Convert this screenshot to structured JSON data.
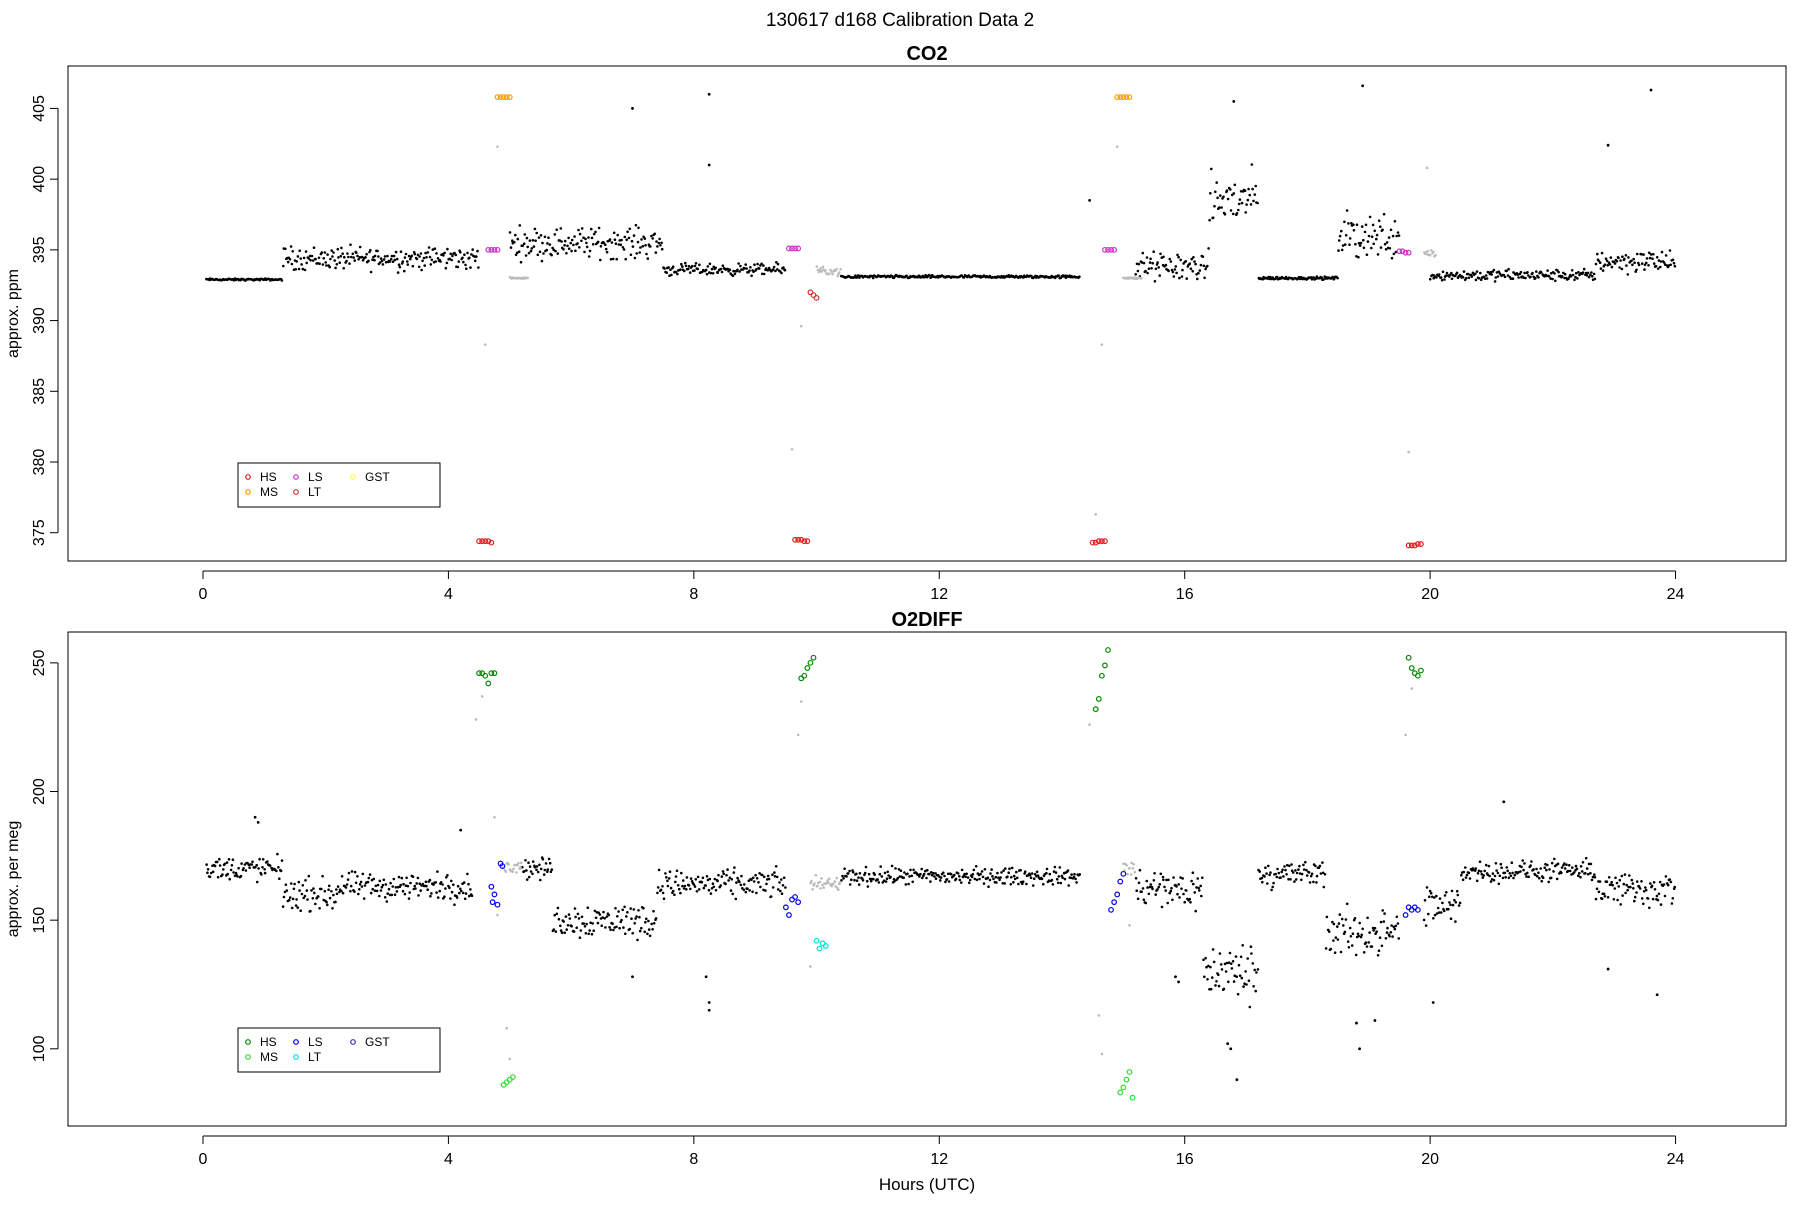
{
  "figure": {
    "title": "130617   d168   Calibration Data 2",
    "xlabel": "Hours (UTC)"
  },
  "chart_data": [
    {
      "type": "scatter",
      "title": "CO2",
      "xlabel": "",
      "ylabel": "approx. ppm",
      "xlim": [
        -2.2,
        25.8
      ],
      "ylim": [
        373,
        408
      ],
      "xticks": [
        0,
        4,
        8,
        12,
        16,
        20,
        24
      ],
      "yticks": [
        375,
        380,
        385,
        390,
        395,
        400,
        405
      ],
      "grid": false,
      "legend_position": "bottom-left",
      "legend": [
        {
          "name": "HS",
          "color": "#e41a1c"
        },
        {
          "name": "MS",
          "color": "#ff9900"
        },
        {
          "name": "LS",
          "color": "#cc33cc"
        },
        {
          "name": "LT",
          "color": "#cc3333"
        },
        {
          "name": "GST",
          "color": "#ffff33"
        }
      ],
      "clusters": [
        {
          "name": "HS",
          "color": "#e41a1c",
          "points": [
            [
              4.5,
              374.4
            ],
            [
              4.55,
              374.4
            ],
            [
              4.6,
              374.4
            ],
            [
              4.65,
              374.4
            ],
            [
              4.7,
              374.3
            ]
          ]
        },
        {
          "name": "HS",
          "color": "#e41a1c",
          "points": [
            [
              9.65,
              374.5
            ],
            [
              9.7,
              374.5
            ],
            [
              9.75,
              374.5
            ],
            [
              9.8,
              374.4
            ],
            [
              9.85,
              374.4
            ]
          ]
        },
        {
          "name": "HS",
          "color": "#e41a1c",
          "points": [
            [
              14.5,
              374.3
            ],
            [
              14.55,
              374.3
            ],
            [
              14.6,
              374.4
            ],
            [
              14.65,
              374.4
            ],
            [
              14.7,
              374.4
            ]
          ]
        },
        {
          "name": "HS",
          "color": "#e41a1c",
          "points": [
            [
              19.65,
              374.1
            ],
            [
              19.7,
              374.1
            ],
            [
              19.75,
              374.1
            ],
            [
              19.8,
              374.2
            ],
            [
              19.85,
              374.2
            ]
          ]
        },
        {
          "name": "MS",
          "color": "#ff9900",
          "points": [
            [
              4.8,
              405.8
            ],
            [
              4.85,
              405.8
            ],
            [
              4.9,
              405.8
            ],
            [
              4.95,
              405.8
            ],
            [
              5.0,
              405.8
            ]
          ]
        },
        {
          "name": "MS",
          "color": "#ff9900",
          "points": [
            [
              14.9,
              405.8
            ],
            [
              14.95,
              405.8
            ],
            [
              15.0,
              405.8
            ],
            [
              15.05,
              405.8
            ],
            [
              15.1,
              405.8
            ]
          ]
        },
        {
          "name": "LS",
          "color": "#cc33cc",
          "points": [
            [
              4.65,
              395.0
            ],
            [
              4.7,
              395.0
            ],
            [
              4.75,
              395.0
            ],
            [
              4.8,
              395.0
            ]
          ]
        },
        {
          "name": "LS",
          "color": "#cc33cc",
          "points": [
            [
              9.55,
              395.1
            ],
            [
              9.6,
              395.1
            ],
            [
              9.65,
              395.1
            ],
            [
              9.7,
              395.1
            ]
          ]
        },
        {
          "name": "LS",
          "color": "#cc33cc",
          "points": [
            [
              14.7,
              395.0
            ],
            [
              14.75,
              395.0
            ],
            [
              14.8,
              395.0
            ],
            [
              14.85,
              395.0
            ]
          ]
        },
        {
          "name": "LS",
          "color": "#cc33cc",
          "points": [
            [
              19.5,
              394.9
            ],
            [
              19.55,
              394.9
            ],
            [
              19.6,
              394.8
            ],
            [
              19.65,
              394.8
            ]
          ]
        },
        {
          "name": "LT",
          "color": "#cc3333",
          "points": [
            [
              9.9,
              392.0
            ],
            [
              9.95,
              391.8
            ],
            [
              10.0,
              391.6
            ]
          ]
        }
      ],
      "outliers_gray": [
        [
          4.6,
          388.3
        ],
        [
          4.8,
          402.3
        ],
        [
          9.6,
          380.9
        ],
        [
          9.75,
          389.6
        ],
        [
          14.55,
          376.3
        ],
        [
          14.65,
          388.3
        ],
        [
          14.9,
          402.3
        ],
        [
          19.65,
          380.7
        ],
        [
          19.95,
          400.8
        ]
      ],
      "outliers_black": [
        [
          8.25,
          406.0
        ],
        [
          8.25,
          401.0
        ],
        [
          7.0,
          405.0
        ],
        [
          16.8,
          405.5
        ],
        [
          18.9,
          406.6
        ],
        [
          23.6,
          406.3
        ],
        [
          22.9,
          402.4
        ],
        [
          14.45,
          398.5
        ]
      ],
      "segments": [
        {
          "from": 0.05,
          "to": 1.3,
          "base": 392.9,
          "noise": 0.1,
          "color": "#000000"
        },
        {
          "from": 1.3,
          "to": 4.5,
          "base": 394.4,
          "noise": 1.2,
          "color": "#000000"
        },
        {
          "from": 5.0,
          "to": 7.5,
          "base": 395.5,
          "noise": 1.6,
          "color": "#000000"
        },
        {
          "from": 7.5,
          "to": 9.5,
          "base": 393.6,
          "noise": 0.6,
          "color": "#000000"
        },
        {
          "from": 10.4,
          "to": 14.3,
          "base": 393.1,
          "noise": 0.15,
          "color": "#000000"
        },
        {
          "from": 15.2,
          "to": 16.4,
          "base": 393.8,
          "noise": 1.5,
          "color": "#000000"
        },
        {
          "from": 16.4,
          "to": 17.2,
          "base": 398.5,
          "noise": 3.0,
          "color": "#000000"
        },
        {
          "from": 17.2,
          "to": 18.5,
          "base": 393.0,
          "noise": 0.15,
          "color": "#000000"
        },
        {
          "from": 18.5,
          "to": 19.5,
          "base": 396.0,
          "noise": 2.5,
          "color": "#000000"
        },
        {
          "from": 20.0,
          "to": 22.7,
          "base": 393.2,
          "noise": 0.6,
          "color": "#000000"
        },
        {
          "from": 22.7,
          "to": 24.0,
          "base": 394.2,
          "noise": 1.2,
          "color": "#000000"
        },
        {
          "from": 10.0,
          "to": 10.4,
          "base": 393.5,
          "noise": 0.4,
          "color": "#bbbbbb"
        },
        {
          "from": 5.0,
          "to": 5.3,
          "base": 393.0,
          "noise": 0.1,
          "color": "#bbbbbb"
        },
        {
          "from": 15.0,
          "to": 15.3,
          "base": 393.0,
          "noise": 0.1,
          "color": "#bbbbbb"
        },
        {
          "from": 19.9,
          "to": 20.1,
          "base": 394.8,
          "noise": 0.4,
          "color": "#bbbbbb"
        }
      ]
    },
    {
      "type": "scatter",
      "title": "O2DIFF",
      "xlabel": "Hours (UTC)",
      "ylabel": "approx. per meg",
      "xlim": [
        -2.2,
        25.8
      ],
      "ylim": [
        70,
        262
      ],
      "xticks": [
        0,
        4,
        8,
        12,
        16,
        20,
        24
      ],
      "yticks": [
        100,
        150,
        200,
        250
      ],
      "grid": false,
      "legend_position": "bottom-left",
      "legend": [
        {
          "name": "HS",
          "color": "#008800"
        },
        {
          "name": "MS",
          "color": "#33dd33"
        },
        {
          "name": "LS",
          "color": "#0000ee"
        },
        {
          "name": "LT",
          "color": "#00dddd"
        },
        {
          "name": "GST",
          "color": "#3333cc"
        }
      ],
      "clusters": [
        {
          "name": "HS",
          "color": "#008800",
          "points": [
            [
              4.5,
              246
            ],
            [
              4.55,
              246
            ],
            [
              4.6,
              245
            ],
            [
              4.65,
              242
            ],
            [
              4.7,
              246
            ],
            [
              4.75,
              246
            ]
          ]
        },
        {
          "name": "HS",
          "color": "#008800",
          "points": [
            [
              9.75,
              244
            ],
            [
              9.8,
              245
            ],
            [
              9.85,
              248
            ],
            [
              9.9,
              250
            ],
            [
              9.95,
              252
            ]
          ]
        },
        {
          "name": "HS",
          "color": "#008800",
          "points": [
            [
              14.55,
              232
            ],
            [
              14.6,
              236
            ],
            [
              14.65,
              245
            ],
            [
              14.7,
              249
            ],
            [
              14.75,
              255
            ]
          ]
        },
        {
          "name": "HS",
          "color": "#008800",
          "points": [
            [
              19.65,
              252
            ],
            [
              19.7,
              248
            ],
            [
              19.75,
              246
            ],
            [
              19.8,
              245
            ],
            [
              19.85,
              247
            ]
          ]
        },
        {
          "name": "MS",
          "color": "#33dd33",
          "points": [
            [
              4.9,
              86
            ],
            [
              4.95,
              87
            ],
            [
              5.0,
              88
            ],
            [
              5.05,
              89
            ]
          ]
        },
        {
          "name": "MS",
          "color": "#33dd33",
          "points": [
            [
              14.95,
              83
            ],
            [
              15.0,
              85
            ],
            [
              15.05,
              88
            ],
            [
              15.1,
              91
            ],
            [
              15.15,
              81
            ]
          ]
        },
        {
          "name": "LS",
          "color": "#0000ee",
          "points": [
            [
              4.7,
              163
            ],
            [
              4.72,
              157
            ],
            [
              4.75,
              160
            ],
            [
              4.8,
              156
            ],
            [
              4.85,
              172
            ],
            [
              4.88,
              171
            ]
          ]
        },
        {
          "name": "LS",
          "color": "#0000ee",
          "points": [
            [
              9.5,
              155
            ],
            [
              9.55,
              152
            ],
            [
              9.6,
              158
            ],
            [
              9.65,
              159
            ],
            [
              9.7,
              157
            ]
          ]
        },
        {
          "name": "LS",
          "color": "#0000ee",
          "points": [
            [
              14.8,
              154
            ],
            [
              14.85,
              157
            ],
            [
              14.9,
              160
            ],
            [
              14.95,
              165
            ],
            [
              15.0,
              168
            ]
          ]
        },
        {
          "name": "LS",
          "color": "#0000ee",
          "points": [
            [
              19.6,
              152
            ],
            [
              19.65,
              155
            ],
            [
              19.7,
              154
            ],
            [
              19.75,
              155
            ],
            [
              19.8,
              154
            ]
          ]
        },
        {
          "name": "LT",
          "color": "#00dddd",
          "points": [
            [
              10.0,
              142
            ],
            [
              10.05,
              139
            ],
            [
              10.1,
              141
            ],
            [
              10.15,
              140
            ]
          ]
        }
      ],
      "outliers_gray": [
        [
          4.45,
          228
        ],
        [
          4.55,
          237
        ],
        [
          4.75,
          190
        ],
        [
          4.95,
          108
        ],
        [
          5.0,
          96
        ],
        [
          9.7,
          222
        ],
        [
          9.75,
          235
        ],
        [
          9.9,
          132
        ],
        [
          14.45,
          226
        ],
        [
          14.6,
          113
        ],
        [
          14.65,
          98
        ],
        [
          19.6,
          222
        ],
        [
          19.7,
          240
        ],
        [
          4.8,
          152
        ],
        [
          15.1,
          148
        ]
      ],
      "outliers_black": [
        [
          0.85,
          190
        ],
        [
          0.9,
          188
        ],
        [
          4.2,
          185
        ],
        [
          8.25,
          118
        ],
        [
          8.25,
          115
        ],
        [
          8.2,
          128
        ],
        [
          7.0,
          128
        ],
        [
          16.75,
          100
        ],
        [
          16.85,
          88
        ],
        [
          16.7,
          102
        ],
        [
          18.8,
          110
        ],
        [
          19.1,
          111
        ],
        [
          18.85,
          100
        ],
        [
          20.05,
          118
        ],
        [
          21.2,
          196
        ],
        [
          23.7,
          121
        ],
        [
          22.9,
          131
        ],
        [
          15.85,
          128
        ],
        [
          15.9,
          126
        ]
      ],
      "segments": [
        {
          "from": 0.05,
          "to": 1.3,
          "base": 170,
          "noise": 7,
          "color": "#000000"
        },
        {
          "from": 1.3,
          "to": 2.2,
          "base": 160,
          "noise": 9,
          "color": "#000000"
        },
        {
          "from": 2.2,
          "to": 4.4,
          "base": 163,
          "noise": 8,
          "color": "#000000"
        },
        {
          "from": 5.2,
          "to": 5.7,
          "base": 170,
          "noise": 6,
          "color": "#000000"
        },
        {
          "from": 5.7,
          "to": 7.4,
          "base": 150,
          "noise": 10,
          "color": "#000000"
        },
        {
          "from": 7.4,
          "to": 9.5,
          "base": 164,
          "noise": 8,
          "color": "#000000"
        },
        {
          "from": 10.4,
          "to": 14.3,
          "base": 167,
          "noise": 5,
          "color": "#000000"
        },
        {
          "from": 15.2,
          "to": 16.3,
          "base": 162,
          "noise": 12,
          "color": "#000000"
        },
        {
          "from": 16.3,
          "to": 17.2,
          "base": 130,
          "noise": 16,
          "color": "#000000"
        },
        {
          "from": 17.2,
          "to": 18.3,
          "base": 168,
          "noise": 8,
          "color": "#000000"
        },
        {
          "from": 18.3,
          "to": 19.5,
          "base": 145,
          "noise": 14,
          "color": "#000000"
        },
        {
          "from": 19.9,
          "to": 20.5,
          "base": 155,
          "noise": 12,
          "color": "#000000"
        },
        {
          "from": 20.5,
          "to": 22.7,
          "base": 169,
          "noise": 6,
          "color": "#000000"
        },
        {
          "from": 22.7,
          "to": 24.0,
          "base": 162,
          "noise": 10,
          "color": "#000000"
        },
        {
          "from": 9.9,
          "to": 10.4,
          "base": 164,
          "noise": 4,
          "color": "#bbbbbb"
        },
        {
          "from": 4.9,
          "to": 5.2,
          "base": 170,
          "noise": 5,
          "color": "#bbbbbb"
        },
        {
          "from": 15.0,
          "to": 15.2,
          "base": 170,
          "noise": 5,
          "color": "#bbbbbb"
        }
      ]
    }
  ]
}
